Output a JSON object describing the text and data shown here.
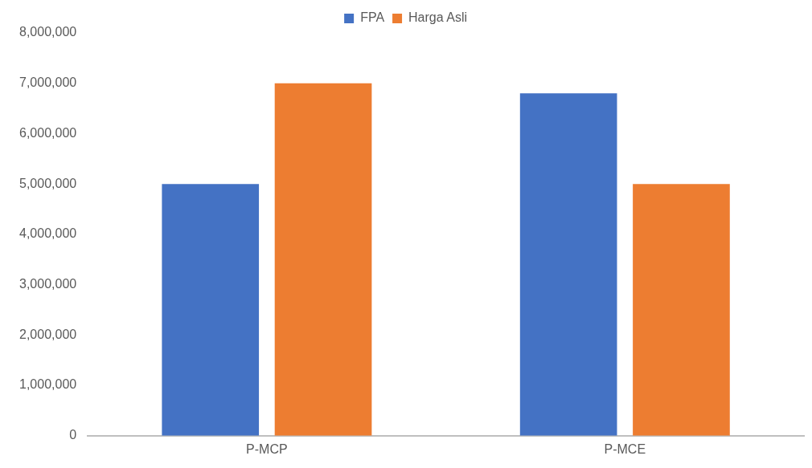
{
  "chart_data": {
    "type": "bar",
    "categories": [
      "P-MCP",
      "P-MCE"
    ],
    "series": [
      {
        "name": "FPA",
        "color": "#4472c4",
        "values": [
          5000000,
          6800000
        ]
      },
      {
        "name": "Harga Asli",
        "color": "#ed7d31",
        "values": [
          7000000,
          5000000
        ]
      }
    ],
    "ylim": [
      0,
      8000000
    ],
    "yticks": [
      0,
      {
        "value": 1000000,
        "label": "1,000,000"
      },
      {
        "value": 2000000,
        "label": "2,000,000"
      },
      {
        "value": 3000000,
        "label": "3,000,000"
      },
      {
        "value": 4000000,
        "label": "4,000,000"
      },
      {
        "value": 5000000,
        "label": "5,000,000"
      },
      {
        "value": 6000000,
        "label": "6,000,000"
      },
      {
        "value": 7000000,
        "label": "7,000,000"
      },
      {
        "value": 8000000,
        "label": "8,000,000"
      }
    ],
    "grid": false,
    "legend": "top"
  }
}
